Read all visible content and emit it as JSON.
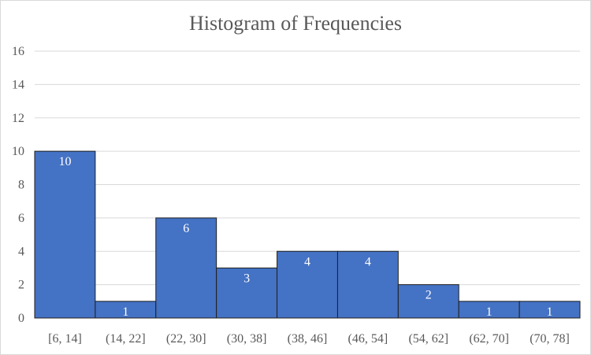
{
  "chart_data": {
    "type": "bar",
    "title": "Histogram  of Frequencies",
    "xlabel": "",
    "ylabel": "",
    "categories": [
      "[6, 14]",
      "(14, 22]",
      "(22, 30]",
      "(30, 38]",
      "(38, 46]",
      "(46, 54]",
      "(54, 62]",
      "(62, 70]",
      "(70, 78]"
    ],
    "values": [
      10,
      1,
      6,
      3,
      4,
      4,
      2,
      1,
      1
    ],
    "data_labels": [
      "10",
      "1",
      "6",
      "3",
      "4",
      "4",
      "2",
      "1",
      "1"
    ],
    "ylim": [
      0,
      16
    ],
    "yticks": [
      "0",
      "2",
      "4",
      "6",
      "8",
      "10",
      "12",
      "14",
      "16"
    ],
    "grid": true,
    "legend": "none",
    "bar_gap": "none",
    "colors": {
      "bar": "#4472C4",
      "bar_border": "#1f1f1f",
      "grid": "#d9d9d9",
      "text": "#595959",
      "label": "#ffffff"
    }
  }
}
